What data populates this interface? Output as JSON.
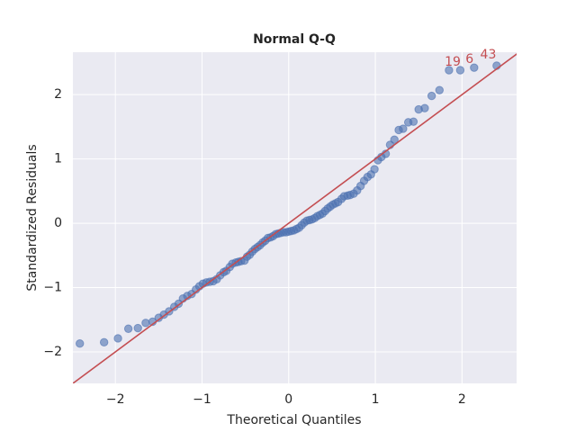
{
  "chart_data": {
    "type": "scatter",
    "title": "Normal Q-Q",
    "xlabel": "Theoretical Quantiles",
    "ylabel": "Standardized Residuals",
    "x": [
      -2.41,
      -2.13,
      -1.97,
      -1.85,
      -1.74,
      -1.65,
      -1.57,
      -1.5,
      -1.44,
      -1.38,
      -1.32,
      -1.27,
      -1.22,
      -1.17,
      -1.12,
      -1.07,
      -1.03,
      -0.99,
      -0.95,
      -0.91,
      -0.87,
      -0.83,
      -0.79,
      -0.75,
      -0.72,
      -0.68,
      -0.65,
      -0.61,
      -0.58,
      -0.55,
      -0.51,
      -0.48,
      -0.45,
      -0.42,
      -0.39,
      -0.36,
      -0.33,
      -0.3,
      -0.27,
      -0.24,
      -0.21,
      -0.18,
      -0.15,
      -0.12,
      -0.09,
      -0.06,
      -0.03,
      0,
      0.03,
      0.06,
      0.09,
      0.12,
      0.15,
      0.18,
      0.21,
      0.24,
      0.27,
      0.3,
      0.33,
      0.36,
      0.39,
      0.42,
      0.45,
      0.48,
      0.51,
      0.54,
      0.57,
      0.61,
      0.64,
      0.68,
      0.71,
      0.75,
      0.79,
      0.83,
      0.87,
      0.91,
      0.95,
      0.99,
      1.03,
      1.07,
      1.12,
      1.17,
      1.22,
      1.27,
      1.32,
      1.38,
      1.44,
      1.5,
      1.57,
      1.65,
      1.74,
      1.85,
      1.98,
      2.14,
      2.4
    ],
    "values": [
      -1.87,
      -1.85,
      -1.79,
      -1.64,
      -1.63,
      -1.55,
      -1.53,
      -1.47,
      -1.42,
      -1.37,
      -1.3,
      -1.25,
      -1.17,
      -1.13,
      -1.1,
      -1.03,
      -0.98,
      -0.94,
      -0.92,
      -0.91,
      -0.9,
      -0.87,
      -0.81,
      -0.76,
      -0.74,
      -0.68,
      -0.63,
      -0.61,
      -0.6,
      -0.59,
      -0.58,
      -0.52,
      -0.49,
      -0.44,
      -0.4,
      -0.37,
      -0.34,
      -0.3,
      -0.27,
      -0.23,
      -0.22,
      -0.2,
      -0.17,
      -0.16,
      -0.15,
      -0.14,
      -0.14,
      -0.13,
      -0.12,
      -0.11,
      -0.09,
      -0.07,
      -0.03,
      0.01,
      0.04,
      0.05,
      0.06,
      0.08,
      0.11,
      0.13,
      0.15,
      0.19,
      0.23,
      0.26,
      0.29,
      0.31,
      0.33,
      0.38,
      0.42,
      0.43,
      0.44,
      0.46,
      0.51,
      0.58,
      0.66,
      0.72,
      0.76,
      0.84,
      0.98,
      1.03,
      1.08,
      1.22,
      1.3,
      1.45,
      1.47,
      1.57,
      1.58,
      1.77,
      1.79,
      1.98,
      2.07,
      2.38,
      2.38,
      2.42,
      2.45
    ],
    "color": "#4c72b0",
    "line_color": "#c44e52",
    "annotation_color": "#c44e52",
    "annotations": [
      {
        "text": "19",
        "x": 1.8,
        "y": 2.38
      },
      {
        "text": "6",
        "x": 2.04,
        "y": 2.42
      },
      {
        "text": "43",
        "x": 2.21,
        "y": 2.49
      }
    ],
    "xlim": [
      -2.49,
      2.63
    ],
    "ylim": [
      -2.49,
      2.66
    ],
    "xticks": [
      {
        "value": -2,
        "label": "−2"
      },
      {
        "value": -1,
        "label": "−1"
      },
      0,
      1,
      2
    ],
    "yticks": [
      {
        "value": -2,
        "label": "−2"
      },
      {
        "value": -1,
        "label": "−1"
      },
      0,
      1,
      2
    ],
    "grid": true
  }
}
